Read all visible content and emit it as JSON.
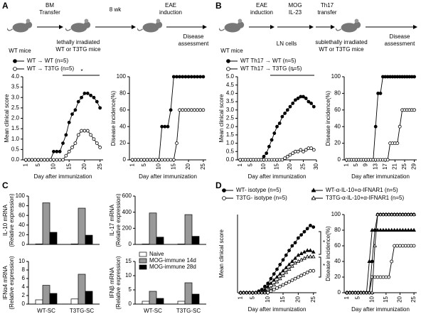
{
  "panels": {
    "a": "A",
    "b": "B",
    "c": "C",
    "d": "D"
  },
  "schematic_a": {
    "start": "WT mice",
    "step1": [
      "BM",
      "Transfer"
    ],
    "recipient": [
      "lethally irradiated",
      "WT or T3TG mice"
    ],
    "wait": "8 wk",
    "step2": [
      "EAE",
      "induction"
    ],
    "end": [
      "Disease",
      "assessment"
    ]
  },
  "schematic_b": {
    "start": "WT mice",
    "step1": [
      "EAE",
      "induction"
    ],
    "cells": "LN cells",
    "step2": [
      "MOG",
      "IL-23"
    ],
    "step3": [
      "Th17",
      "transfer"
    ],
    "recipient": [
      "sublethally irradiated",
      "WT or T3TG mice"
    ],
    "end": [
      "Disease",
      "assessment"
    ]
  },
  "chart_data": [
    {
      "type": "line",
      "ylabel": "Mean clinical score",
      "xlabel": "Day after immunization",
      "x": [
        1,
        2,
        3,
        4,
        5,
        6,
        7,
        8,
        9,
        10,
        11,
        12,
        13,
        14,
        15,
        16,
        17,
        18,
        19,
        20,
        21,
        22,
        23,
        24,
        25
      ],
      "xlim": [
        0,
        26
      ],
      "xticks": [
        1,
        5,
        10,
        15,
        20,
        25
      ],
      "ylim": [
        0,
        4
      ],
      "yticks": [
        {
          "value": 0,
          "label": "0.0"
        },
        0.5,
        {
          "value": 1,
          "label": "1.0"
        },
        1.5,
        {
          "value": 2,
          "label": "2.0"
        },
        2.5,
        {
          "value": 3,
          "label": "3.0"
        },
        3.5,
        {
          "value": 4,
          "label": "4.0"
        }
      ],
      "annotations": [
        "*"
      ],
      "series": [
        {
          "name": "WT → WT (n=5)",
          "color": "#000000",
          "marker": "circle",
          "filled": true,
          "values": [
            0,
            0,
            0,
            0,
            0,
            0,
            0,
            0,
            0,
            0.4,
            0.4,
            0.4,
            0.8,
            1.2,
            1.8,
            2.2,
            2.4,
            2.8,
            3.0,
            3.2,
            3.2,
            3.1,
            3.0,
            2.8,
            2.5
          ]
        },
        {
          "name": "WT → T3TG (n=5)",
          "color": "#000000",
          "marker": "circle",
          "filled": false,
          "values": [
            0,
            0,
            0,
            0,
            0,
            0,
            0,
            0,
            0,
            0,
            0,
            0,
            0,
            0.2,
            0.4,
            0.6,
            0.8,
            1.2,
            1.4,
            1.4,
            1.4,
            1.2,
            1.0,
            0.8,
            0.6
          ]
        }
      ]
    },
    {
      "type": "line",
      "ylabel": "Disease incidence(%)",
      "xlabel": "Day after immunization",
      "x": [
        1,
        2,
        3,
        4,
        5,
        6,
        7,
        8,
        9,
        10,
        11,
        12,
        13,
        14,
        15,
        16,
        17,
        18,
        19,
        20,
        21,
        22,
        23,
        24,
        25
      ],
      "xlim": [
        0,
        26
      ],
      "xticks": [
        1,
        5,
        10,
        15,
        20,
        25
      ],
      "ylim": [
        0,
        100
      ],
      "yticks": [
        0,
        20,
        40,
        60,
        80,
        100
      ],
      "series": [
        {
          "color": "#000000",
          "marker": "circle",
          "filled": true,
          "values": [
            0,
            0,
            0,
            0,
            0,
            0,
            0,
            0,
            0,
            0,
            40,
            40,
            40,
            60,
            100,
            100,
            100,
            100,
            100,
            100,
            100,
            100,
            100,
            100,
            100
          ]
        },
        {
          "color": "#000000",
          "marker": "circle",
          "filled": false,
          "values": [
            0,
            0,
            0,
            0,
            0,
            0,
            0,
            0,
            0,
            0,
            0,
            0,
            0,
            0,
            0,
            20,
            60,
            60,
            60,
            60,
            60,
            60,
            60,
            60,
            60
          ]
        }
      ]
    },
    {
      "type": "line",
      "ylabel": "Mean clinical score",
      "xlabel": "Day after immunization",
      "x": [
        1,
        2,
        3,
        4,
        5,
        6,
        7,
        8,
        9,
        10,
        11,
        12,
        13,
        14,
        15,
        16,
        17,
        18,
        19,
        20,
        21,
        22,
        23,
        24,
        25,
        26,
        27,
        28,
        29
      ],
      "xlim": [
        0,
        30
      ],
      "xticks": [
        1,
        5,
        10,
        15,
        20,
        25,
        30
      ],
      "ylim": [
        0,
        5
      ],
      "yticks": [
        {
          "value": 0,
          "label": "0.0"
        },
        0.5,
        {
          "value": 1,
          "label": "1.0"
        },
        1.5,
        {
          "value": 2,
          "label": "2.0"
        },
        2.5,
        {
          "value": 3,
          "label": "3.0"
        },
        3.5,
        {
          "value": 4,
          "label": "4.0"
        },
        4.5,
        {
          "value": 5,
          "label": "5.0"
        }
      ],
      "annotations": [
        "*"
      ],
      "series": [
        {
          "name": "WT Th17 → WT (n=5)",
          "color": "#000000",
          "marker": "circle",
          "filled": true,
          "values": [
            0,
            0,
            0,
            0,
            0,
            0,
            0,
            0,
            0,
            0.2,
            0.4,
            0.8,
            1.2,
            1.6,
            2.0,
            2.2,
            2.6,
            2.8,
            3.0,
            3.2,
            3.4,
            3.6,
            3.7,
            3.8,
            3.8,
            3.7,
            3.5,
            3.4,
            3.2
          ]
        },
        {
          "name": "WT Th17 → T3TG (n=5)",
          "color": "#000000",
          "marker": "circle",
          "filled": false,
          "values": [
            0,
            0,
            0,
            0,
            0,
            0,
            0,
            0,
            0,
            0,
            0,
            0,
            0,
            0,
            0,
            0,
            0,
            0.1,
            0.2,
            0.3,
            0.4,
            0.5,
            0.5,
            0.6,
            0.5,
            0.6,
            0.7,
            0.7,
            0.6
          ]
        }
      ]
    },
    {
      "type": "line",
      "ylabel": "Disease incidence(%)",
      "xlabel": "Day after immunization",
      "x": [
        1,
        2,
        3,
        4,
        5,
        6,
        7,
        8,
        9,
        10,
        11,
        12,
        13,
        14,
        15,
        16,
        17,
        18,
        19,
        20,
        21,
        22,
        23,
        24,
        25,
        26,
        27,
        28,
        29
      ],
      "xlim": [
        0,
        30
      ],
      "xticks": [
        1,
        5,
        9,
        13,
        17,
        21,
        25,
        29
      ],
      "ylim": [
        0,
        100
      ],
      "yticks": [
        0,
        20,
        40,
        60,
        80,
        100
      ],
      "series": [
        {
          "color": "#000000",
          "marker": "circle",
          "filled": true,
          "values": [
            0,
            0,
            0,
            0,
            0,
            0,
            0,
            0,
            0,
            0,
            0,
            0,
            40,
            80,
            80,
            100,
            100,
            100,
            100,
            100,
            100,
            100,
            100,
            100,
            100,
            100,
            100,
            100,
            100
          ]
        },
        {
          "color": "#000000",
          "marker": "circle",
          "filled": false,
          "values": [
            0,
            0,
            0,
            0,
            0,
            0,
            0,
            0,
            0,
            0,
            0,
            0,
            0,
            0,
            0,
            0,
            0,
            0,
            20,
            20,
            20,
            20,
            40,
            60,
            60,
            60,
            60,
            60,
            60
          ]
        }
      ]
    },
    {
      "type": "bar",
      "ylabel": [
        "IL-10 mRNA",
        "(Relative expression)"
      ],
      "ylim": [
        0,
        100
      ],
      "yticks": [
        0,
        20,
        40,
        60,
        80,
        100
      ],
      "series": [
        {
          "color": "#ffffff",
          "values": [
            1,
            1
          ]
        },
        {
          "color": "#999999",
          "values": [
            86,
            75
          ]
        },
        {
          "color": "#000000",
          "values": [
            25,
            19
          ]
        }
      ]
    },
    {
      "type": "bar",
      "ylabel": [
        "IL-17 mRNA",
        "(Relative expression)"
      ],
      "ylim": [
        0,
        600
      ],
      "yticks": [
        0,
        200,
        400,
        600
      ],
      "series": [
        {
          "color": "#ffffff",
          "values": [
            5,
            5
          ]
        },
        {
          "color": "#999999",
          "values": [
            390,
            370
          ]
        },
        {
          "color": "#000000",
          "values": [
            90,
            100
          ]
        }
      ]
    },
    {
      "type": "bar",
      "ylabel": [
        "IFNα4 mRNA",
        "(Relative expression)"
      ],
      "ylim": [
        0,
        10
      ],
      "yticks": [
        0,
        2,
        4,
        6,
        8,
        10
      ],
      "categories": [
        "WT-SC",
        "T3TG-SC"
      ],
      "series": [
        {
          "color": "#ffffff",
          "values": [
            1.0,
            1.2
          ]
        },
        {
          "color": "#999999",
          "values": [
            4.4,
            7.0
          ]
        },
        {
          "color": "#000000",
          "values": [
            2.5,
            3.0
          ]
        }
      ]
    },
    {
      "type": "bar",
      "ylabel": [
        "IFNβ mRNA",
        "(Relative expression)"
      ],
      "ylim": [
        0,
        15
      ],
      "yticks": [
        0,
        5,
        10,
        15
      ],
      "categories": [
        "WT-SC",
        "T3TG-SC"
      ],
      "series": [
        {
          "name": "Naive",
          "color": "#ffffff",
          "values": [
            1.0,
            1.0
          ]
        },
        {
          "name": "MOG-immune 14d",
          "color": "#999999",
          "values": [
            4.5,
            7.5
          ]
        },
        {
          "name": "MOG-immune 28d",
          "color": "#000000",
          "values": [
            2.0,
            3.5
          ]
        }
      ]
    },
    {
      "type": "line",
      "ylabel": "Mean clinical score",
      "xlabel": "Day after immunization",
      "x": [
        1,
        2,
        3,
        4,
        5,
        6,
        7,
        8,
        9,
        10,
        11,
        12,
        13,
        14,
        15,
        16,
        17,
        18,
        19,
        20,
        21,
        22,
        23,
        24,
        25
      ],
      "xlim": [
        0,
        26
      ],
      "xticks": [
        1,
        5,
        10,
        15,
        20,
        25
      ],
      "ylim": [
        0,
        5
      ],
      "annotations": [
        "*",
        "*"
      ],
      "series": [
        {
          "name": "WT- isotype (n=5)",
          "color": "#000000",
          "marker": "circle",
          "filled": true,
          "values": [
            0,
            0,
            0,
            0,
            0,
            0,
            0.1,
            0.2,
            0.4,
            0.6,
            0.9,
            1.2,
            1.5,
            1.8,
            2.1,
            2.4,
            2.7,
            3.0,
            3.2,
            3.5,
            3.7,
            3.9,
            4.1,
            4.3,
            4.2
          ]
        },
        {
          "name": "T3TG- isotype (n=5)",
          "color": "#000000",
          "marker": "circle",
          "filled": false,
          "values": [
            0,
            0,
            0,
            0,
            0,
            0,
            0,
            0,
            0,
            0,
            0.1,
            0.2,
            0.3,
            0.4,
            0.5,
            0.6,
            0.7,
            0.8,
            0.9,
            1.0,
            1.1,
            1.2,
            1.3,
            1.4,
            1.4
          ]
        },
        {
          "name": "WT-α-IL-10+α-IFNAR1 (n=5)",
          "color": "#000000",
          "marker": "triangle",
          "filled": true,
          "values": [
            0,
            0,
            0,
            0,
            0,
            0,
            0,
            0,
            0.2,
            0.4,
            0.6,
            0.8,
            1.0,
            1.2,
            1.4,
            1.6,
            1.8,
            2.0,
            2.2,
            2.4,
            2.5,
            2.6,
            2.7,
            2.7,
            2.6
          ]
        },
        {
          "name": "T3TG-α-IL-10+α-IFNAR1 (n=5)",
          "color": "#000000",
          "marker": "triangle",
          "filled": false,
          "values": [
            0,
            0,
            0,
            0,
            0,
            0,
            0,
            0,
            0,
            0.2,
            0.3,
            0.5,
            0.7,
            0.9,
            1.1,
            1.3,
            1.5,
            1.7,
            1.9,
            2.0,
            2.1,
            2.2,
            2.3,
            2.3,
            2.3
          ]
        }
      ]
    },
    {
      "type": "line",
      "ylabel": "Disease incidence(%)",
      "xlabel": "Day after immunization",
      "x": [
        1,
        2,
        3,
        4,
        5,
        6,
        7,
        8,
        9,
        10,
        11,
        12,
        13,
        14,
        15,
        16,
        17,
        18,
        19,
        20,
        21,
        22,
        23,
        24,
        25
      ],
      "xlim": [
        0,
        26
      ],
      "xticks": [
        1,
        5,
        10,
        15,
        20,
        25
      ],
      "ylim": [
        0,
        100
      ],
      "yticks": [
        0,
        20,
        40,
        60,
        80,
        100
      ],
      "series": [
        {
          "color": "#000000",
          "marker": "circle",
          "filled": true,
          "values": [
            0,
            0,
            0,
            0,
            0,
            0,
            0,
            0,
            0,
            40,
            80,
            100,
            100,
            100,
            100,
            100,
            100,
            100,
            100,
            100,
            100,
            100,
            100,
            100,
            100
          ]
        },
        {
          "color": "#000000",
          "marker": "circle",
          "filled": false,
          "values": [
            0,
            0,
            0,
            0,
            0,
            0,
            0,
            0,
            0,
            20,
            20,
            20,
            20,
            20,
            20,
            20,
            40,
            60,
            60,
            60,
            60,
            60,
            60,
            60,
            60
          ]
        },
        {
          "color": "#000000",
          "marker": "triangle",
          "filled": true,
          "values": [
            0,
            0,
            0,
            0,
            0,
            0,
            0,
            0,
            40,
            80,
            80,
            80,
            80,
            80,
            80,
            80,
            80,
            80,
            80,
            80,
            80,
            80,
            80,
            80,
            80
          ]
        },
        {
          "color": "#000000",
          "marker": "triangle",
          "filled": false,
          "values": [
            0,
            0,
            0,
            0,
            0,
            0,
            0,
            0,
            0,
            0,
            60,
            100,
            100,
            100,
            100,
            100,
            100,
            100,
            100,
            100,
            100,
            100,
            100,
            100,
            100
          ]
        }
      ]
    }
  ]
}
